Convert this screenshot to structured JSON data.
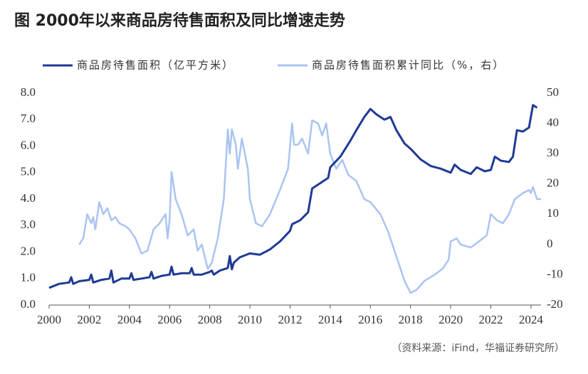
{
  "chart_data": {
    "type": "line",
    "title": "图  2000年以来商品房待售面积及同比增速走势",
    "source": "（资料来源：iFind，华福证券研究所）",
    "xlim": [
      2000,
      2024.5
    ],
    "xticks": [
      2000,
      2002,
      2004,
      2006,
      2008,
      2010,
      2012,
      2014,
      2016,
      2018,
      2020,
      2022,
      2024
    ],
    "ylim": [
      0,
      8
    ],
    "yticks": [
      {
        "value": 0,
        "label": "0.0"
      },
      {
        "value": 1,
        "label": "1.0"
      },
      {
        "value": 2,
        "label": "2.0"
      },
      {
        "value": 3,
        "label": "3.0"
      },
      {
        "value": 4,
        "label": "4.0"
      },
      {
        "value": 5,
        "label": "5.0"
      },
      {
        "value": 6,
        "label": "6.0"
      },
      {
        "value": 7,
        "label": "7.0"
      },
      {
        "value": 8,
        "label": "8.0"
      }
    ],
    "y2lim": [
      -20,
      50
    ],
    "y2ticks": [
      -20,
      -10,
      0,
      10,
      20,
      30,
      40,
      50
    ],
    "series": [
      {
        "name": "商品房待售面积（亿平方米）",
        "color": "#1e3a96",
        "x": [
          2000.0,
          2000.5,
          2001.0,
          2001.1,
          2001.2,
          2001.5,
          2002.0,
          2002.1,
          2002.2,
          2002.6,
          2003.0,
          2003.1,
          2003.2,
          2003.6,
          2004.0,
          2004.1,
          2004.2,
          2004.6,
          2005.0,
          2005.1,
          2005.2,
          2005.6,
          2006.0,
          2006.1,
          2006.2,
          2006.6,
          2007.0,
          2007.1,
          2007.2,
          2007.6,
          2008.0,
          2008.1,
          2008.2,
          2008.5,
          2008.9,
          2009.0,
          2009.1,
          2009.2,
          2009.5,
          2010.0,
          2010.5,
          2011.0,
          2011.5,
          2012.0,
          2012.1,
          2012.5,
          2012.9,
          2013.1,
          2013.5,
          2013.9,
          2014.0,
          2014.5,
          2015.0,
          2015.3,
          2015.7,
          2016.0,
          2016.3,
          2016.7,
          2017.0,
          2017.3,
          2017.7,
          2018.0,
          2018.5,
          2019.0,
          2019.5,
          2020.0,
          2020.2,
          2020.5,
          2021.0,
          2021.3,
          2021.7,
          2022.0,
          2022.2,
          2022.5,
          2022.9,
          2023.1,
          2023.3,
          2023.6,
          2023.9,
          2024.1,
          2024.3
        ],
        "values": [
          0.65,
          0.8,
          0.85,
          1.05,
          0.8,
          0.9,
          0.95,
          1.15,
          0.85,
          0.95,
          1.0,
          1.3,
          0.85,
          1.0,
          1.0,
          1.2,
          0.95,
          1.0,
          1.05,
          1.25,
          1.0,
          1.1,
          1.15,
          1.45,
          1.15,
          1.2,
          1.2,
          1.4,
          1.15,
          1.15,
          1.25,
          1.3,
          1.15,
          1.3,
          1.4,
          1.85,
          1.35,
          1.6,
          1.8,
          1.95,
          1.9,
          2.1,
          2.4,
          2.8,
          3.05,
          3.2,
          3.5,
          4.4,
          4.6,
          4.8,
          5.2,
          5.6,
          6.2,
          6.6,
          7.1,
          7.4,
          7.2,
          7.0,
          7.1,
          6.6,
          6.1,
          5.9,
          5.5,
          5.25,
          5.15,
          5.0,
          5.3,
          5.1,
          4.95,
          5.2,
          5.05,
          5.1,
          5.6,
          5.45,
          5.4,
          5.6,
          6.6,
          6.55,
          6.7,
          7.55,
          7.45
        ]
      },
      {
        "name": "商品房待售面积累计同比（%，右）",
        "color": "#aac4f2",
        "axis": "y2",
        "x": [
          2001.5,
          2001.7,
          2001.9,
          2002.1,
          2002.2,
          2002.3,
          2002.5,
          2002.7,
          2002.9,
          2003.1,
          2003.3,
          2003.5,
          2003.8,
          2004.0,
          2004.3,
          2004.6,
          2004.9,
          2005.2,
          2005.5,
          2005.8,
          2005.9,
          2006.0,
          2006.1,
          2006.3,
          2006.6,
          2006.9,
          2007.2,
          2007.4,
          2007.6,
          2007.9,
          2008.1,
          2008.4,
          2008.7,
          2008.9,
          2009.0,
          2009.1,
          2009.3,
          2009.4,
          2009.6,
          2009.9,
          2010.0,
          2010.3,
          2010.6,
          2011.0,
          2011.5,
          2011.9,
          2012.1,
          2012.2,
          2012.4,
          2012.6,
          2012.9,
          2013.1,
          2013.4,
          2013.6,
          2013.8,
          2014.0,
          2014.3,
          2014.6,
          2014.9,
          2015.3,
          2015.7,
          2016.0,
          2016.5,
          2016.9,
          2017.3,
          2017.7,
          2018.0,
          2018.3,
          2018.7,
          2019.2,
          2019.6,
          2019.9,
          2020.0,
          2020.3,
          2020.5,
          2021.0,
          2021.4,
          2021.8,
          2022.0,
          2022.3,
          2022.6,
          2022.9,
          2023.2,
          2023.6,
          2023.9,
          2024.0,
          2024.1,
          2024.3,
          2024.5
        ],
        "values": [
          0,
          2,
          10,
          7,
          9,
          5,
          14,
          10,
          12,
          8,
          9,
          7,
          6,
          5,
          2,
          -3,
          -2,
          5,
          7,
          10,
          2,
          8,
          24,
          15,
          10,
          3,
          5,
          -2,
          0,
          -8,
          -6,
          2,
          15,
          38,
          30,
          38,
          33,
          25,
          35,
          25,
          15,
          7,
          6,
          10,
          18,
          25,
          40,
          33,
          33,
          35,
          30,
          41,
          40,
          36,
          40,
          30,
          25,
          28,
          23,
          21,
          15,
          14,
          10,
          4,
          -4,
          -12,
          -16,
          -15,
          -12,
          -10,
          -8,
          -5,
          1,
          2,
          0,
          -1,
          1,
          3,
          10,
          8,
          7,
          10,
          15,
          17,
          18,
          17,
          19,
          15,
          15
        ]
      }
    ]
  }
}
